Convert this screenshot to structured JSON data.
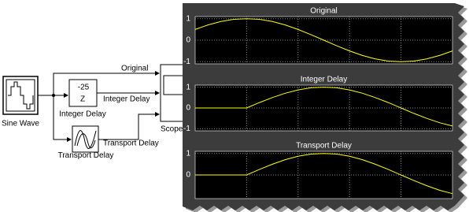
{
  "diagram": {
    "blocks": [
      {
        "label": "Sine Wave"
      },
      {
        "label": "Integer Delay",
        "exponent": "-25",
        "symbol": "Z"
      },
      {
        "label": "Transport Delay"
      },
      {
        "label": "Scope"
      }
    ],
    "signals": [
      "Original",
      "Integer Delay",
      "Transport Delay"
    ]
  },
  "scope": {
    "type": "line",
    "x": [
      0,
      0.5,
      1,
      1.5,
      2,
      2.5,
      3,
      3.5,
      4,
      4.5,
      5,
      5.5,
      6,
      6.5,
      7,
      7.5,
      8,
      8.5,
      9,
      9.5,
      10
    ],
    "xlim": [
      0,
      10
    ],
    "line_color": "#ffff00",
    "plots": [
      {
        "title": "Original",
        "ylim": [
          -1.1,
          1.1
        ],
        "yticks": [
          1,
          0,
          -1
        ],
        "values": [
          0.5,
          0.71,
          0.87,
          0.97,
          1,
          0.97,
          0.87,
          0.71,
          0.5,
          0.26,
          0,
          -0.26,
          -0.5,
          -0.71,
          -0.87,
          -0.97,
          -1,
          -0.97,
          -0.87,
          -0.71,
          -0.5
        ]
      },
      {
        "title": "Integer Delay",
        "ylim": [
          -1.1,
          1.1
        ],
        "yticks": [
          1,
          0,
          -1
        ],
        "values": [
          0,
          0,
          0,
          0,
          0,
          0.26,
          0.5,
          0.71,
          0.87,
          0.97,
          1,
          0.97,
          0.87,
          0.71,
          0.5,
          0.26,
          0,
          -0.26,
          -0.5,
          -0.71,
          -0.87
        ]
      },
      {
        "title": "Transport Delay",
        "ylim": [
          -1.1,
          1.1
        ],
        "yticks": [
          1,
          0
        ],
        "values": [
          0,
          0,
          0,
          0,
          0,
          0.26,
          0.5,
          0.71,
          0.87,
          0.97,
          1,
          0.97,
          0.87,
          0.71,
          0.5,
          0.26,
          0,
          -0.26,
          -0.5,
          -0.71,
          -0.87
        ]
      }
    ]
  }
}
